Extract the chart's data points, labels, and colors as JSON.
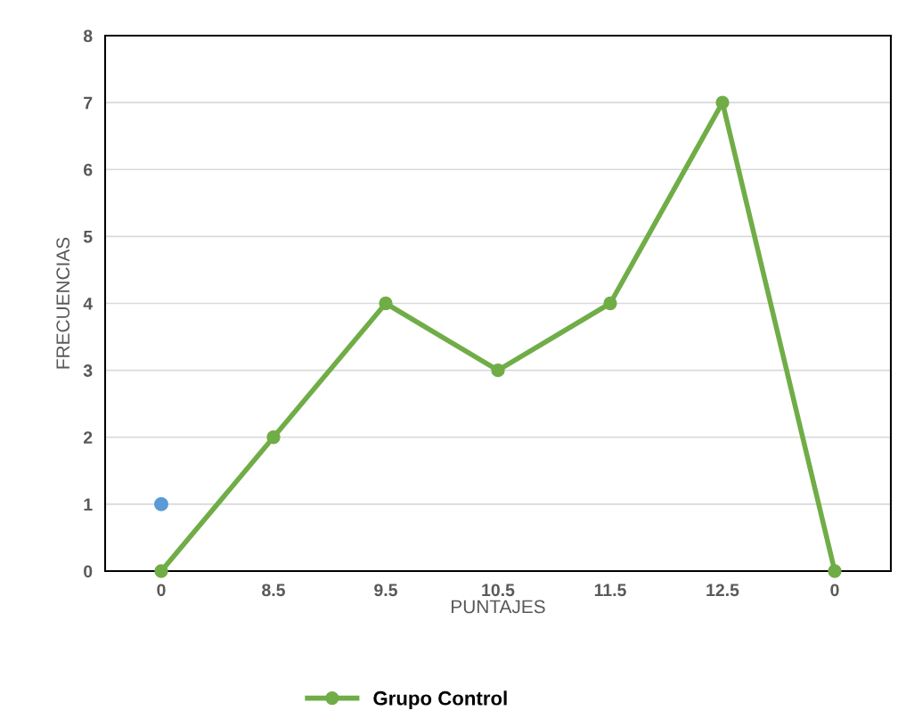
{
  "chart_data": {
    "type": "line",
    "xlabel": "PUNTAJES",
    "ylabel": "FRECUENCIAS",
    "categories": [
      "0",
      "8.5",
      "9.5",
      "10.5",
      "11.5",
      "12.5",
      "0"
    ],
    "series": [
      {
        "name": "Grupo Control",
        "color": "#70ad47",
        "values": [
          0,
          2,
          4,
          3,
          4,
          7,
          0
        ],
        "marker": "circle"
      },
      {
        "type": "scatter",
        "color": "#5b9bd5",
        "values": [
          1,
          null,
          null,
          null,
          null,
          null,
          null
        ],
        "marker": "circle"
      }
    ],
    "ylim": [
      0,
      8
    ],
    "yticks": [
      0,
      1,
      2,
      3,
      4,
      5,
      6,
      7,
      8
    ],
    "grid": "y",
    "legend": "bottom"
  }
}
